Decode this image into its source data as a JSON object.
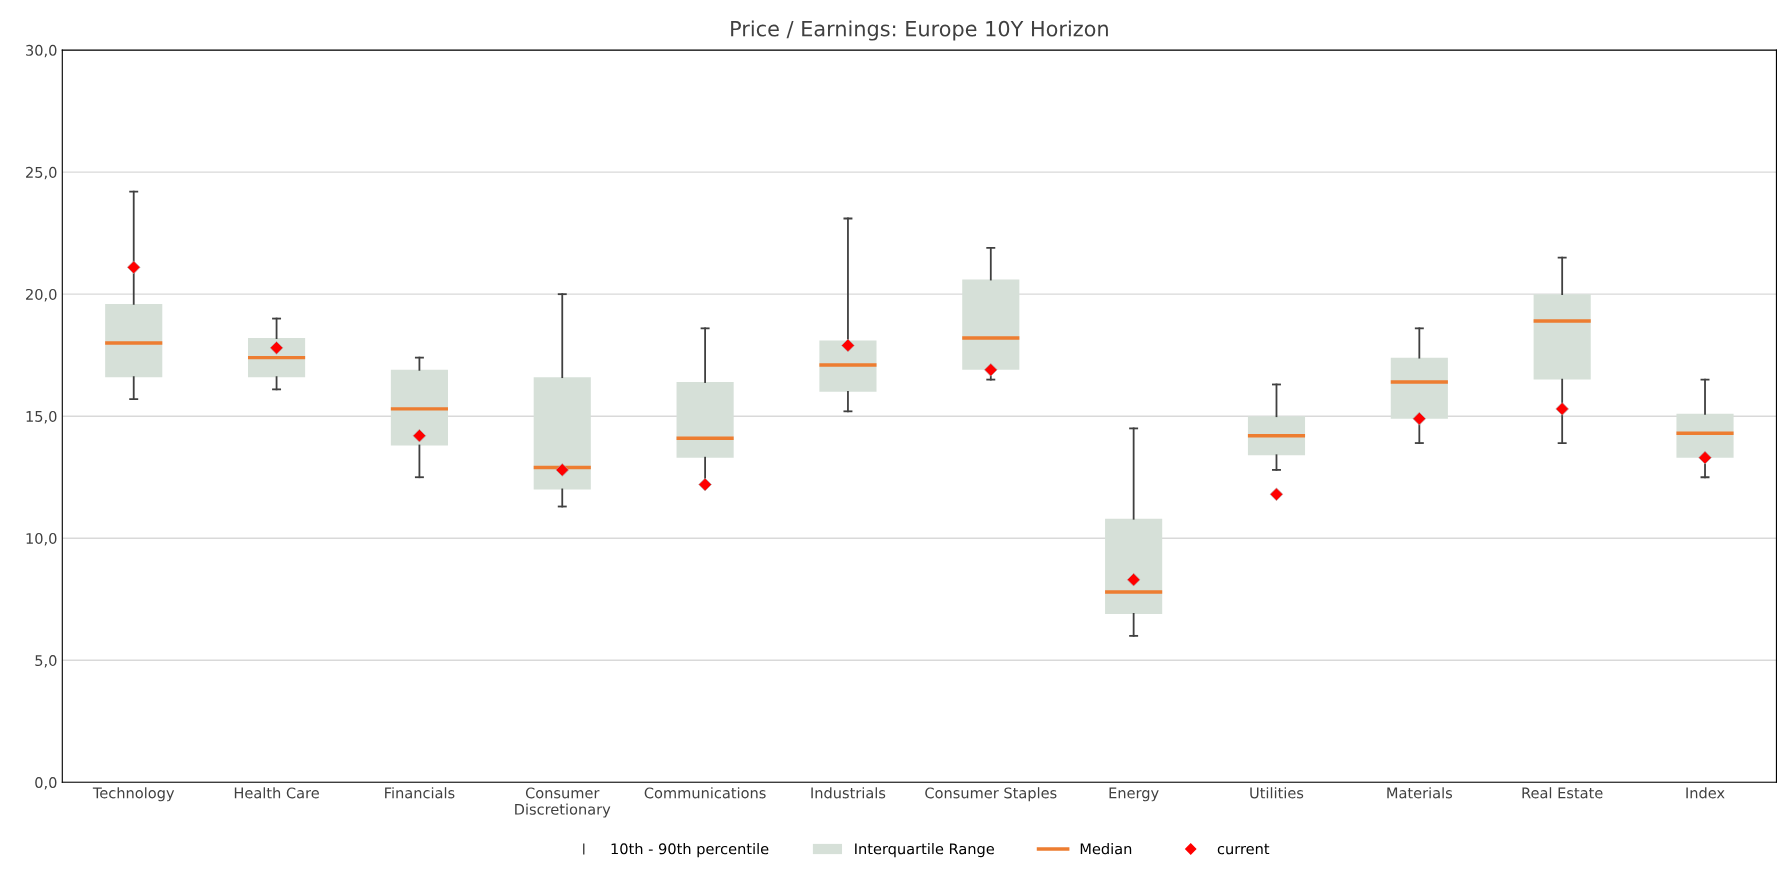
{
  "chart_data": {
    "type": "box",
    "title": "Price / Earnings: Europe 10Y Horizon",
    "categories": [
      "Technology",
      "Health Care",
      "Financials",
      "Consumer\nDiscretionary",
      "Communications",
      "Industrials",
      "Consumer Staples",
      "Energy",
      "Utilities",
      "Materials",
      "Real Estate",
      "Index"
    ],
    "ylim": [
      0,
      30
    ],
    "yticks": [
      {
        "value": 0,
        "label": "0,0"
      },
      {
        "value": 5,
        "label": "5,0"
      },
      {
        "value": 10,
        "label": "10,0"
      },
      {
        "value": 15,
        "label": "15,0"
      },
      {
        "value": 20,
        "label": "20,0"
      },
      {
        "value": 25,
        "label": "25,0"
      },
      {
        "value": 30,
        "label": "30,0"
      }
    ],
    "grid": "y",
    "legend": "bottom",
    "annotations": [
      "10th - 90th percentile",
      "Median"
    ],
    "series": [
      {
        "type": "box",
        "name": "Interquartile Range",
        "color": "#d6e0d8",
        "boxes": [
          {
            "low": 15.7,
            "q1": 16.6,
            "median": 18.0,
            "q3": 19.6,
            "high": 24.2
          },
          {
            "low": 16.1,
            "q1": 16.6,
            "median": 17.4,
            "q3": 18.2,
            "high": 19.0
          },
          {
            "low": 12.5,
            "q1": 13.8,
            "median": 15.3,
            "q3": 16.9,
            "high": 17.4
          },
          {
            "low": 11.3,
            "q1": 12.0,
            "median": 12.9,
            "q3": 16.6,
            "high": 20.0
          },
          {
            "low": 12.2,
            "q1": 13.3,
            "median": 14.1,
            "q3": 16.4,
            "high": 18.6
          },
          {
            "low": 15.2,
            "q1": 16.0,
            "median": 17.1,
            "q3": 18.1,
            "high": 23.1
          },
          {
            "low": 16.5,
            "q1": 16.9,
            "median": 18.2,
            "q3": 20.6,
            "high": 21.9
          },
          {
            "low": 6.0,
            "q1": 6.9,
            "median": 7.8,
            "q3": 10.8,
            "high": 14.5
          },
          {
            "low": 12.8,
            "q1": 13.4,
            "median": 14.2,
            "q3": 15.0,
            "high": 16.3
          },
          {
            "low": 13.9,
            "q1": 14.9,
            "median": 16.4,
            "q3": 17.4,
            "high": 18.6
          },
          {
            "low": 13.9,
            "q1": 16.5,
            "median": 18.9,
            "q3": 20.0,
            "high": 21.5
          },
          {
            "low": 12.5,
            "q1": 13.3,
            "median": 14.3,
            "q3": 15.1,
            "high": 16.5
          }
        ]
      },
      {
        "type": "scatter",
        "name": "current",
        "color": "#ff0000",
        "marker": "diamond",
        "values": [
          21.1,
          17.8,
          14.2,
          12.8,
          12.2,
          17.9,
          16.9,
          8.3,
          11.8,
          14.9,
          15.3,
          13.3
        ]
      }
    ]
  }
}
